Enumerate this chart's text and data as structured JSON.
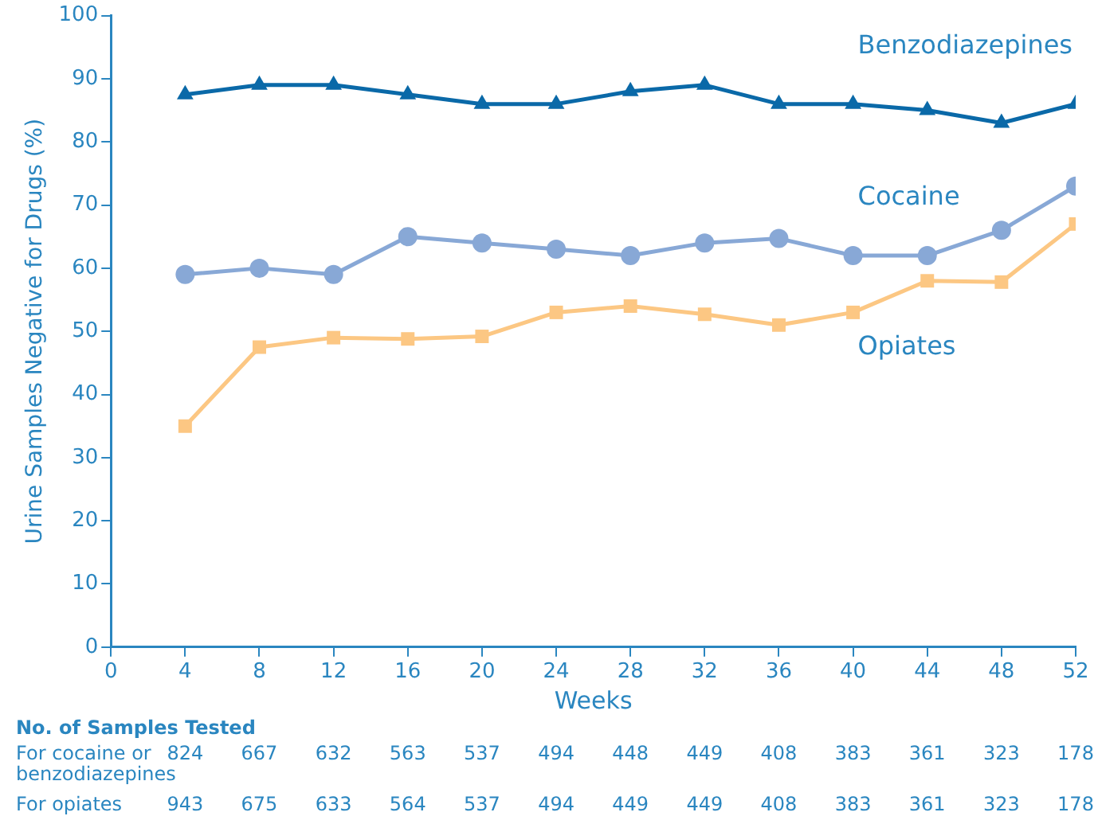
{
  "chart_data": {
    "type": "line",
    "xlabel": "Weeks",
    "ylabel": "Urine Samples Negative for Drugs (%)",
    "x": [
      4,
      8,
      12,
      16,
      20,
      24,
      28,
      32,
      36,
      40,
      44,
      48,
      52
    ],
    "series": [
      {
        "name": "Benzodiazepines",
        "color": "#0a69a8",
        "marker": "triangle",
        "values": [
          87.5,
          89,
          89,
          87.5,
          86,
          86,
          88,
          89,
          86,
          86,
          85,
          83,
          86
        ]
      },
      {
        "name": "Cocaine",
        "color": "#88a8d6",
        "marker": "circle",
        "values": [
          59,
          60,
          59,
          65,
          64,
          63,
          62,
          64,
          64.7,
          62,
          62,
          66,
          73
        ]
      },
      {
        "name": "Opiates",
        "color": "#fcc783",
        "marker": "square",
        "values": [
          35,
          47.5,
          49,
          48.8,
          49.2,
          53,
          54,
          52.7,
          51,
          53,
          58,
          57.8,
          67
        ]
      }
    ],
    "xlim": [
      0,
      52
    ],
    "xticks": [
      0,
      4,
      8,
      12,
      16,
      20,
      24,
      28,
      32,
      36,
      40,
      44,
      48,
      52
    ],
    "ylim": [
      0,
      100
    ],
    "yticks": [
      0,
      10,
      20,
      30,
      40,
      50,
      60,
      70,
      80,
      90,
      100
    ],
    "grid": false,
    "legend": false,
    "annotations": [
      "No. of Samples Tested",
      "For cocaine or\nbenzodiazepines",
      "824",
      "667",
      "632",
      "563",
      "537",
      "494",
      "448",
      "449",
      "408",
      "383",
      "361",
      "323",
      "178",
      "For opiates",
      "943",
      "675",
      "633",
      "564",
      "537",
      "494",
      "449",
      "449",
      "408",
      "383",
      "361",
      "323",
      "178"
    ]
  }
}
